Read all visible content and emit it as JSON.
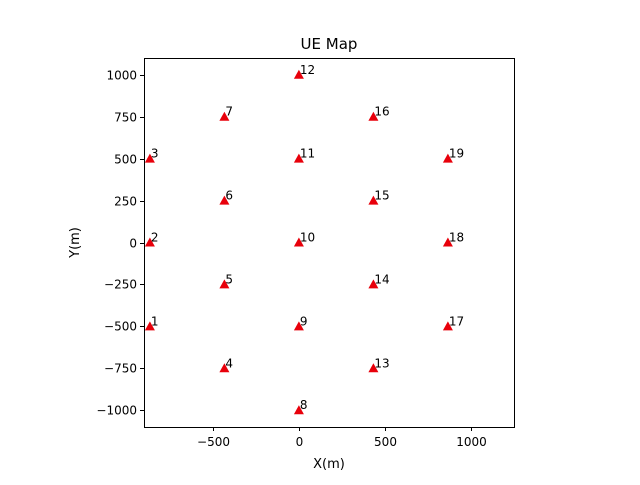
{
  "chart_data": {
    "type": "scatter",
    "title": "UE Map",
    "xlabel": "X(m)",
    "ylabel": "Y(m)",
    "xlim": [
      -900,
      1250
    ],
    "ylim": [
      -1100,
      1100
    ],
    "xticks": [
      -500,
      0,
      500,
      1000
    ],
    "xtick_labels": [
      "−500",
      "0",
      "500",
      "1000"
    ],
    "yticks": [
      -1000,
      -750,
      -500,
      -250,
      0,
      250,
      500,
      750,
      1000
    ],
    "ytick_labels": [
      "−1000",
      "−750",
      "−500",
      "−250",
      "0",
      "250",
      "500",
      "750",
      "1000"
    ],
    "grid": false,
    "marker": "triangle-up",
    "marker_color": "#e8000b",
    "points": [
      {
        "label": "1",
        "x": -866,
        "y": -500
      },
      {
        "label": "2",
        "x": -866,
        "y": 0
      },
      {
        "label": "3",
        "x": -866,
        "y": 500
      },
      {
        "label": "4",
        "x": -433,
        "y": -750
      },
      {
        "label": "5",
        "x": -433,
        "y": -250
      },
      {
        "label": "6",
        "x": -433,
        "y": 250
      },
      {
        "label": "7",
        "x": -433,
        "y": 750
      },
      {
        "label": "8",
        "x": 0,
        "y": -1000
      },
      {
        "label": "9",
        "x": 0,
        "y": -500
      },
      {
        "label": "10",
        "x": 0,
        "y": 0
      },
      {
        "label": "11",
        "x": 0,
        "y": 500
      },
      {
        "label": "12",
        "x": 0,
        "y": 1000
      },
      {
        "label": "13",
        "x": 433,
        "y": -750
      },
      {
        "label": "14",
        "x": 433,
        "y": -250
      },
      {
        "label": "15",
        "x": 433,
        "y": 250
      },
      {
        "label": "16",
        "x": 433,
        "y": 750
      },
      {
        "label": "17",
        "x": 866,
        "y": -500
      },
      {
        "label": "18",
        "x": 866,
        "y": 0
      },
      {
        "label": "19",
        "x": 866,
        "y": 500
      }
    ]
  }
}
